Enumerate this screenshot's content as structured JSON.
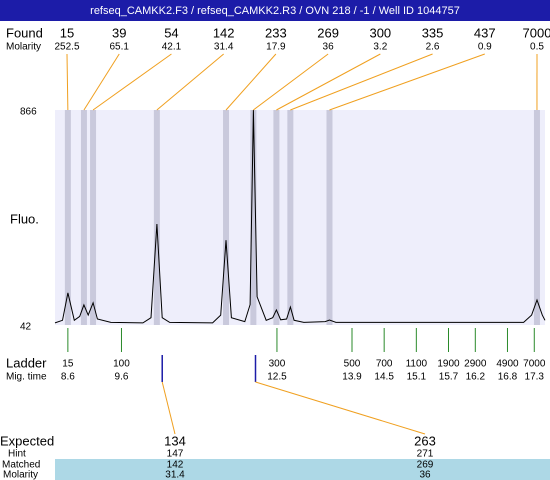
{
  "header": "refseq_CAMKK2.F3 / refseq_CAMKK2.R3 / OVN 218 / -1 / Well ID 1044757",
  "labels": {
    "found": "Found",
    "molarity": "Molarity",
    "fluo": "Fluo.",
    "ladder": "Ladder",
    "mig_time": "Mig. time",
    "expected": "Expected",
    "hint": "Hint",
    "matched": "Matched",
    "matched_molarity": "Molarity"
  },
  "chart_data": {
    "type": "electropherogram",
    "xlim": [
      8.36,
      17.5
    ],
    "ylim": [
      42,
      866
    ],
    "yticks": [
      866,
      42
    ],
    "found": {
      "sizes": [
        15,
        39,
        54,
        142,
        233,
        269,
        300,
        335,
        437,
        7000
      ],
      "molarity": [
        252.5,
        65.1,
        42.1,
        31.4,
        17.9,
        36,
        3.2,
        2.6,
        0.9,
        0.5
      ],
      "x": [
        8.6,
        8.9,
        9.07,
        10.26,
        11.55,
        12.06,
        12.49,
        12.75,
        13.48,
        17.35
      ]
    },
    "ladder": {
      "sizes": [
        15,
        100,
        300,
        500,
        700,
        1100,
        1900,
        2900,
        4900,
        7000
      ],
      "x": [
        8.6,
        9.6,
        12.5,
        13.9,
        14.5,
        15.1,
        15.7,
        16.2,
        16.8,
        17.3
      ]
    },
    "trace": {
      "x": [
        8.36,
        8.5,
        8.6,
        8.72,
        8.82,
        8.9,
        8.98,
        9.07,
        9.15,
        9.4,
        10.0,
        10.15,
        10.26,
        10.36,
        10.5,
        11.3,
        11.45,
        11.55,
        11.65,
        11.9,
        12.0,
        12.06,
        12.13,
        12.3,
        12.42,
        12.49,
        12.57,
        12.68,
        12.75,
        12.82,
        13.0,
        13.4,
        13.48,
        13.6,
        17.1,
        17.25,
        17.35,
        17.45,
        17.5
      ],
      "values": [
        50,
        60,
        165,
        60,
        75,
        119,
        80,
        127,
        65,
        52,
        50,
        70,
        429,
        70,
        52,
        50,
        80,
        367,
        70,
        55,
        120,
        866,
        150,
        60,
        70,
        100,
        62,
        65,
        111,
        60,
        52,
        55,
        61,
        52,
        52,
        80,
        138,
        80,
        60
      ]
    },
    "expected": {
      "sizes": [
        134,
        263
      ],
      "hint": [
        147,
        271
      ],
      "matched": [
        142,
        269
      ],
      "molarity": [
        31.4,
        36
      ],
      "x": [
        10.36,
        12.1
      ]
    }
  }
}
